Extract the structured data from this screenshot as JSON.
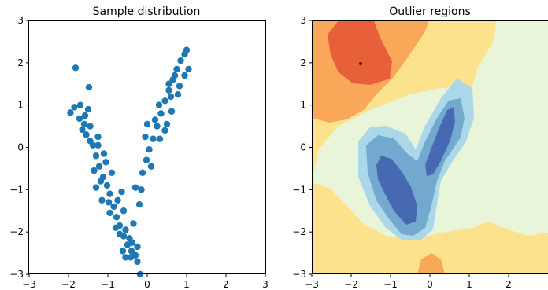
{
  "chart_data": [
    {
      "type": "scatter",
      "title": "Sample distribution",
      "xlim": [
        -3,
        3
      ],
      "ylim": [
        -3,
        3
      ],
      "x_ticks": [
        "−3",
        "−2",
        "−1",
        "0",
        "1",
        "2",
        "3"
      ],
      "y_ticks": [
        "−3",
        "−2",
        "−1",
        "0",
        "1",
        "2",
        "3"
      ],
      "marker_color": "#1f77b4",
      "grid": false,
      "series": [
        {
          "points": [
            [
              -1.82,
              1.88
            ],
            [
              -1.48,
              1.42
            ],
            [
              -1.95,
              0.82
            ],
            [
              -1.85,
              0.95
            ],
            [
              -1.72,
              0.68
            ],
            [
              -1.6,
              0.55
            ],
            [
              -1.55,
              0.3
            ],
            [
              -1.45,
              0.15
            ],
            [
              -1.38,
              0.05
            ],
            [
              -1.3,
              -0.2
            ],
            [
              -1.22,
              -0.45
            ],
            [
              -1.12,
              -0.7
            ],
            [
              -1.02,
              -0.9
            ],
            [
              -0.95,
              -1.1
            ],
            [
              -0.85,
              -1.4
            ],
            [
              -0.78,
              -1.65
            ],
            [
              -0.7,
              -1.85
            ],
            [
              -0.6,
              -2.1
            ],
            [
              -0.5,
              -2.3
            ],
            [
              -0.4,
              -2.45
            ],
            [
              -0.3,
              -2.55
            ],
            [
              -0.25,
              -2.7
            ],
            [
              -0.55,
              -2.6
            ],
            [
              -0.45,
              -2.15
            ],
            [
              -0.35,
              -1.8
            ],
            [
              -0.2,
              -1.35
            ],
            [
              -0.15,
              -1.0
            ],
            [
              -0.12,
              -0.6
            ],
            [
              -0.02,
              -0.3
            ],
            [
              0.05,
              -0.05
            ],
            [
              0.15,
              0.2
            ],
            [
              0.25,
              0.5
            ],
            [
              0.35,
              0.8
            ],
            [
              0.45,
              1.1
            ],
            [
              0.55,
              1.35
            ],
            [
              0.65,
              1.6
            ],
            [
              0.75,
              1.85
            ],
            [
              0.85,
              2.05
            ],
            [
              0.95,
              2.2
            ],
            [
              1.0,
              2.3
            ],
            [
              0.78,
              1.25
            ],
            [
              0.62,
              0.85
            ],
            [
              0.5,
              0.55
            ],
            [
              0.32,
              0.2
            ],
            [
              -1.65,
              0.42
            ],
            [
              -1.25,
              0.25
            ],
            [
              -1.5,
              0.9
            ],
            [
              -1.05,
              -0.35
            ],
            [
              -1.35,
              -0.55
            ],
            [
              -0.9,
              -0.6
            ],
            [
              -0.65,
              -1.05
            ],
            [
              -1.15,
              -1.25
            ],
            [
              -0.95,
              -1.55
            ],
            [
              -0.6,
              -1.5
            ],
            [
              -0.42,
              -2.6
            ],
            [
              -0.18,
              -3.0
            ],
            [
              -0.3,
              -0.95
            ],
            [
              0.1,
              -0.45
            ],
            [
              -0.05,
              0.25
            ],
            [
              0.2,
              0.65
            ],
            [
              0.0,
              0.55
            ],
            [
              0.45,
              0.4
            ],
            [
              0.3,
              1.0
            ],
            [
              0.6,
              1.2
            ],
            [
              0.95,
              1.7
            ],
            [
              1.05,
              1.85
            ],
            [
              0.7,
              1.7
            ],
            [
              0.55,
              1.5
            ],
            [
              0.82,
              1.45
            ],
            [
              -1.7,
              1.0
            ],
            [
              -1.58,
              0.75
            ],
            [
              -1.45,
              0.5
            ],
            [
              -1.25,
              0.05
            ],
            [
              -1.1,
              -0.15
            ],
            [
              -1.18,
              -0.8
            ],
            [
              -1.3,
              -0.95
            ],
            [
              -0.98,
              -1.3
            ],
            [
              -0.75,
              -1.25
            ],
            [
              -0.7,
              -2.05
            ],
            [
              -0.55,
              -1.95
            ],
            [
              -0.38,
              -2.25
            ],
            [
              -0.25,
              -2.35
            ],
            [
              -0.62,
              -2.45
            ],
            [
              -0.8,
              -1.9
            ]
          ]
        }
      ]
    },
    {
      "type": "heatmap",
      "title": "Outlier regions",
      "xlim": [
        -3,
        3
      ],
      "ylim": [
        -3,
        3
      ],
      "x_ticks": [
        "−3",
        "−2",
        "−1",
        "0",
        "1",
        "2"
      ],
      "y_ticks": [
        "−3",
        "−2",
        "−1",
        "0",
        "1",
        "2",
        "3"
      ],
      "colors": {
        "high": "#e8603a",
        "mid_high": "#f9a85a",
        "mid": "#fde28e",
        "neutral": "#e8f5d9",
        "low1": "#abd8e9",
        "low2": "#74a9cf",
        "low3": "#4669b1"
      },
      "grid": false
    }
  ]
}
